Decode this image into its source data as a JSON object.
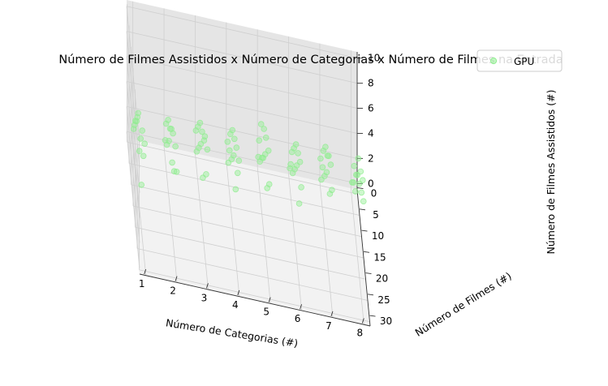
{
  "chart_data": {
    "type": "scatter",
    "projection": "3d",
    "title": "Número de Filmes Assistidos x Número de Categorias x Número de Filmes na Entrada",
    "xlabel": "Número de Categorias (#)",
    "ylabel": "Número de Filmes (#)",
    "zlabel": "Número de Filmes Assistidos (#)",
    "xlim": [
      0.8,
      8.2
    ],
    "ylim": [
      -1,
      31
    ],
    "zlim": [
      -0.5,
      10.5
    ],
    "xticks": [
      "1",
      "2",
      "3",
      "4",
      "5",
      "6",
      "7",
      "8"
    ],
    "yticks": [
      "0",
      "5",
      "10",
      "15",
      "20",
      "25",
      "30"
    ],
    "zticks": [
      "0",
      "2",
      "4",
      "6",
      "8",
      "10"
    ],
    "grid": true,
    "legend_position": "top-right",
    "series": [
      {
        "name": "GPU",
        "color": "#90ee90",
        "marker": "circle",
        "points_note_units": "[categories, films, watched]",
        "points": [
          [
            1,
            1,
            1
          ],
          [
            1,
            3,
            2
          ],
          [
            1,
            5,
            3
          ],
          [
            1,
            8,
            4
          ],
          [
            1,
            10,
            5
          ],
          [
            1,
            12,
            6
          ],
          [
            1,
            15,
            4
          ],
          [
            1,
            18,
            6
          ],
          [
            1,
            20,
            3
          ],
          [
            1,
            22,
            8
          ],
          [
            1,
            25,
            7
          ],
          [
            1,
            28,
            9
          ],
          [
            2,
            2,
            1
          ],
          [
            2,
            4,
            3
          ],
          [
            2,
            6,
            2
          ],
          [
            2,
            9,
            5
          ],
          [
            2,
            11,
            4
          ],
          [
            2,
            14,
            6
          ],
          [
            2,
            17,
            7
          ],
          [
            2,
            19,
            5
          ],
          [
            2,
            21,
            8
          ],
          [
            2,
            24,
            6
          ],
          [
            2,
            27,
            9
          ],
          [
            2,
            30,
            8
          ],
          [
            3,
            1,
            2
          ],
          [
            3,
            3,
            1
          ],
          [
            3,
            6,
            4
          ],
          [
            3,
            8,
            3
          ],
          [
            3,
            11,
            6
          ],
          [
            3,
            13,
            5
          ],
          [
            3,
            16,
            7
          ],
          [
            3,
            18,
            4
          ],
          [
            3,
            21,
            8
          ],
          [
            3,
            23,
            9
          ],
          [
            3,
            26,
            7
          ],
          [
            3,
            29,
            10
          ],
          [
            4,
            2,
            2
          ],
          [
            4,
            4,
            1
          ],
          [
            4,
            7,
            3
          ],
          [
            4,
            9,
            5
          ],
          [
            4,
            12,
            4
          ],
          [
            4,
            14,
            7
          ],
          [
            4,
            17,
            6
          ],
          [
            4,
            19,
            8
          ],
          [
            4,
            22,
            5
          ],
          [
            4,
            24,
            9
          ],
          [
            4,
            27,
            8
          ],
          [
            4,
            30,
            10
          ],
          [
            5,
            1,
            1
          ],
          [
            5,
            3,
            3
          ],
          [
            5,
            5,
            2
          ],
          [
            5,
            8,
            6
          ],
          [
            5,
            10,
            4
          ],
          [
            5,
            13,
            5
          ],
          [
            5,
            15,
            8
          ],
          [
            5,
            18,
            7
          ],
          [
            5,
            20,
            9
          ],
          [
            5,
            23,
            6
          ],
          [
            5,
            26,
            10
          ],
          [
            5,
            28,
            8
          ],
          [
            6,
            2,
            1
          ],
          [
            6,
            4,
            2
          ],
          [
            6,
            7,
            4
          ],
          [
            6,
            9,
            3
          ],
          [
            6,
            12,
            6
          ],
          [
            6,
            14,
            5
          ],
          [
            6,
            17,
            8
          ],
          [
            6,
            19,
            7
          ],
          [
            6,
            22,
            9
          ],
          [
            6,
            25,
            6
          ],
          [
            6,
            27,
            10
          ],
          [
            6,
            30,
            9
          ],
          [
            7,
            1,
            2
          ],
          [
            7,
            3,
            1
          ],
          [
            7,
            6,
            3
          ],
          [
            7,
            8,
            5
          ],
          [
            7,
            11,
            4
          ],
          [
            7,
            13,
            7
          ],
          [
            7,
            16,
            6
          ],
          [
            7,
            18,
            8
          ],
          [
            7,
            21,
            9
          ],
          [
            7,
            24,
            7
          ],
          [
            7,
            26,
            10
          ],
          [
            7,
            29,
            9
          ],
          [
            8,
            2,
            1
          ],
          [
            8,
            5,
            2
          ],
          [
            8,
            7,
            4
          ],
          [
            8,
            10,
            3
          ],
          [
            8,
            12,
            5
          ],
          [
            8,
            15,
            6
          ],
          [
            8,
            17,
            8
          ],
          [
            8,
            20,
            7
          ],
          [
            8,
            23,
            9
          ],
          [
            8,
            25,
            8
          ],
          [
            8,
            28,
            10
          ],
          [
            8,
            30,
            9
          ]
        ]
      }
    ]
  }
}
